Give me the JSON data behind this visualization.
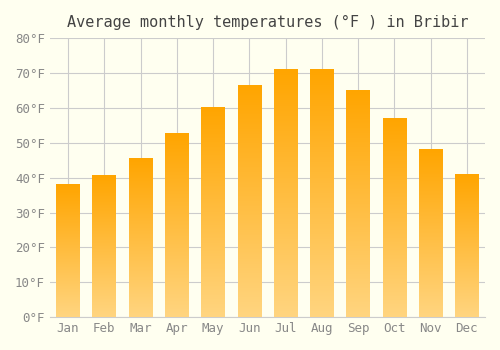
{
  "title": "Average monthly temperatures (°F ) in Bribir",
  "months": [
    "Jan",
    "Feb",
    "Mar",
    "Apr",
    "May",
    "Jun",
    "Jul",
    "Aug",
    "Sep",
    "Oct",
    "Nov",
    "Dec"
  ],
  "values": [
    38,
    40.5,
    45.5,
    52.5,
    60,
    66.5,
    71,
    71,
    65,
    57,
    48,
    41
  ],
  "bar_color_top": "#FFA500",
  "bar_color_bottom": "#FFD580",
  "ylim": [
    0,
    80
  ],
  "yticks": [
    0,
    10,
    20,
    30,
    40,
    50,
    60,
    70,
    80
  ],
  "ytick_labels": [
    "0°F",
    "10°F",
    "20°F",
    "30°F",
    "40°F",
    "50°F",
    "60°F",
    "70°F",
    "80°F"
  ],
  "bg_color": "#fffff0",
  "grid_color": "#cccccc",
  "title_fontsize": 11,
  "tick_fontsize": 9,
  "bar_width": 0.65
}
